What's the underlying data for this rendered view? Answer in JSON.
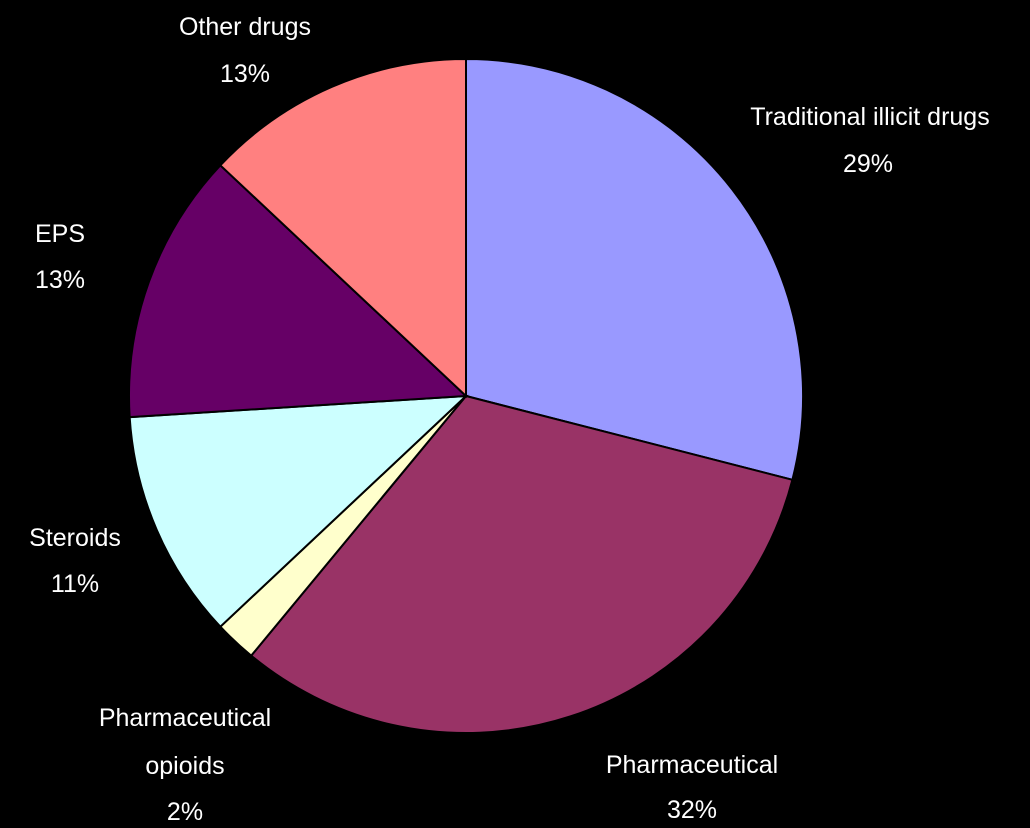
{
  "chart_data": {
    "type": "pie",
    "title": "",
    "start_angle_deg": 0,
    "direction": "clockwise",
    "slice_border_color": "#000000",
    "slices": [
      {
        "label": "Traditional illicit drugs",
        "percent_label": "29%",
        "value": 29,
        "color": "#9999FF"
      },
      {
        "label": "Pharmaceutical",
        "percent_label": "32%",
        "value": 32,
        "color": "#993366"
      },
      {
        "label": "Pharmaceutical opioids",
        "percent_label": "2%",
        "value": 2,
        "color": "#FFFFCC"
      },
      {
        "label": "Steroids",
        "percent_label": "11%",
        "value": 11,
        "color": "#CCFFFF"
      },
      {
        "label": "EPS",
        "percent_label": "13%",
        "value": 13,
        "color": "#660066"
      },
      {
        "label": "Other drugs",
        "percent_label": "13%",
        "value": 13,
        "color": "#FF8080"
      }
    ]
  }
}
